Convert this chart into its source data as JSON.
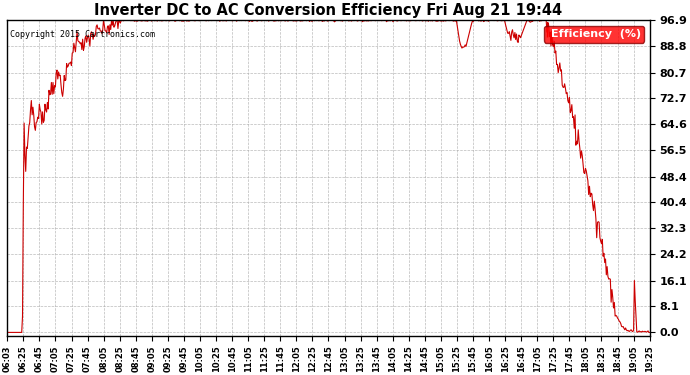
{
  "title": "Inverter DC to AC Conversion Efficiency Fri Aug 21 19:44",
  "background_color": "#ffffff",
  "plot_bg_color": "#ffffff",
  "grid_color": "#aaaaaa",
  "line_color": "#cc0000",
  "yticks": [
    0.0,
    8.1,
    16.1,
    24.2,
    32.3,
    40.4,
    48.4,
    56.5,
    64.6,
    72.7,
    80.7,
    88.8,
    96.9
  ],
  "ylim": [
    0.0,
    96.9
  ],
  "copyright": "Copyright 2015 Cartronics.com",
  "legend_label": "Efficiency  (%)",
  "xtick_labels": [
    "06:03",
    "06:25",
    "06:45",
    "07:05",
    "07:25",
    "07:45",
    "08:05",
    "08:25",
    "08:45",
    "09:05",
    "09:25",
    "09:45",
    "10:05",
    "10:25",
    "10:45",
    "11:05",
    "11:25",
    "11:45",
    "12:05",
    "12:25",
    "12:45",
    "13:05",
    "13:25",
    "13:45",
    "14:05",
    "14:25",
    "14:45",
    "15:05",
    "15:25",
    "15:45",
    "16:05",
    "16:25",
    "16:45",
    "17:05",
    "17:25",
    "17:45",
    "18:05",
    "18:25",
    "18:45",
    "19:05",
    "19:25"
  ]
}
